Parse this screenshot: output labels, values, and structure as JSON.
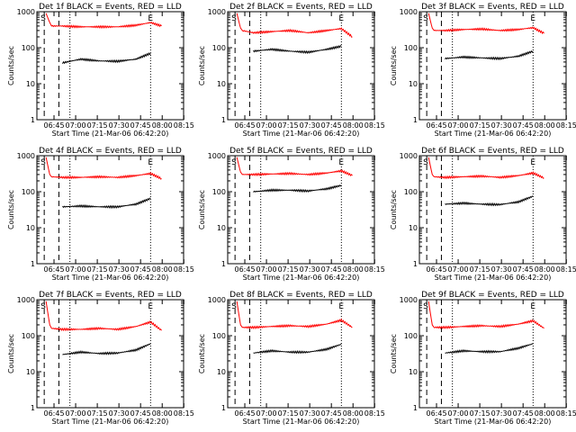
{
  "chart_data": [
    {
      "type": "line",
      "title": "Det 1f BLACK = Events, RED = LLD",
      "xlabel": "Start Time (21-Mar-06 06:42:20)",
      "ylabel": "Counts/sec",
      "xlim_minutes": [
        -2,
        38
      ],
      "ylim": [
        1,
        1000
      ],
      "log_y": true,
      "x_tick_labels": [
        "06:45",
        "07:00",
        "07:15",
        "07:30",
        "07:45",
        "08:00",
        "08:15"
      ],
      "y_tick_labels": [
        "1",
        "10",
        "100",
        "1000"
      ],
      "markers": {
        "S": 0,
        "E": 29
      },
      "vlines_dashed": [
        0,
        4
      ],
      "vlines_dotted": [
        7,
        29
      ],
      "series": [
        {
          "color": "#000000",
          "t": [
            5,
            10,
            15,
            20,
            25,
            29
          ],
          "y": [
            38,
            48,
            43,
            42,
            48,
            70
          ]
        },
        {
          "color": "#ff0000",
          "t": [
            0.5,
            1.5,
            2,
            5,
            10,
            15,
            20,
            25,
            29,
            32
          ],
          "y": [
            900,
            500,
            400,
            400,
            380,
            380,
            380,
            420,
            500,
            400
          ]
        }
      ]
    },
    {
      "type": "line",
      "title": "Det 2f BLACK = Events, RED = LLD",
      "xlabel": "Start Time (21-Mar-06 06:42:20)",
      "ylabel": "Counts/sec",
      "xlim_minutes": [
        -2,
        38
      ],
      "ylim": [
        1,
        1000
      ],
      "log_y": true,
      "x_tick_labels": [
        "06:45",
        "07:00",
        "07:15",
        "07:30",
        "07:45",
        "08:00",
        "08:15"
      ],
      "y_tick_labels": [
        "1",
        "10",
        "100",
        "1000"
      ],
      "markers": {
        "S": 0,
        "E": 29
      },
      "vlines_dashed": [
        0,
        4
      ],
      "vlines_dotted": [
        7,
        29
      ],
      "series": [
        {
          "color": "#000000",
          "t": [
            5,
            10,
            15,
            20,
            25,
            29
          ],
          "y": [
            80,
            90,
            80,
            75,
            90,
            110
          ]
        },
        {
          "color": "#ff0000",
          "t": [
            0.5,
            1.5,
            2,
            5,
            10,
            15,
            20,
            25,
            29,
            32
          ],
          "y": [
            900,
            350,
            300,
            260,
            280,
            300,
            260,
            300,
            340,
            200
          ]
        }
      ]
    },
    {
      "type": "line",
      "title": "Det 3f BLACK = Events, RED = LLD",
      "xlabel": "Start Time (21-Mar-06 06:42:20)",
      "ylabel": "Counts/sec",
      "xlim_minutes": [
        -2,
        38
      ],
      "ylim": [
        1,
        1000
      ],
      "log_y": true,
      "x_tick_labels": [
        "06:45",
        "07:00",
        "07:15",
        "07:30",
        "07:45",
        "08:00",
        "08:15"
      ],
      "y_tick_labels": [
        "1",
        "10",
        "100",
        "1000"
      ],
      "markers": {
        "S": 0,
        "E": 29
      },
      "vlines_dashed": [
        0,
        4
      ],
      "vlines_dotted": [
        7,
        29
      ],
      "series": [
        {
          "color": "#000000",
          "t": [
            5,
            10,
            15,
            20,
            25,
            29
          ],
          "y": [
            50,
            55,
            52,
            50,
            58,
            80
          ]
        },
        {
          "color": "#ff0000",
          "t": [
            0.5,
            1.5,
            2,
            5,
            10,
            15,
            20,
            25,
            29,
            32
          ],
          "y": [
            900,
            350,
            300,
            300,
            320,
            330,
            300,
            320,
            360,
            250
          ]
        }
      ]
    },
    {
      "type": "line",
      "title": "Det 4f BLACK = Events, RED = LLD",
      "xlabel": "Start Time (21-Mar-06 06:42:20)",
      "ylabel": "Counts/sec",
      "xlim_minutes": [
        -2,
        38
      ],
      "ylim": [
        1,
        1000
      ],
      "log_y": true,
      "x_tick_labels": [
        "06:45",
        "07:00",
        "07:15",
        "07:30",
        "07:45",
        "08:00",
        "08:15"
      ],
      "y_tick_labels": [
        "1",
        "10",
        "100",
        "1000"
      ],
      "markers": {
        "S": 0,
        "E": 29
      },
      "vlines_dashed": [
        0,
        4
      ],
      "vlines_dotted": [
        7,
        29
      ],
      "series": [
        {
          "color": "#000000",
          "t": [
            5,
            10,
            15,
            20,
            25,
            29
          ],
          "y": [
            38,
            40,
            38,
            38,
            45,
            65
          ]
        },
        {
          "color": "#ff0000",
          "t": [
            0.5,
            1.5,
            2,
            5,
            10,
            15,
            20,
            25,
            29,
            32
          ],
          "y": [
            900,
            300,
            260,
            250,
            250,
            260,
            250,
            280,
            320,
            230
          ]
        }
      ]
    },
    {
      "type": "line",
      "title": "Det 5f BLACK = Events, RED = LLD",
      "xlabel": "Start Time (21-Mar-06 06:42:20)",
      "ylabel": "Counts/sec",
      "xlim_minutes": [
        -2,
        38
      ],
      "ylim": [
        1,
        1000
      ],
      "log_y": true,
      "x_tick_labels": [
        "06:45",
        "07:00",
        "07:15",
        "07:30",
        "07:45",
        "08:00",
        "08:15"
      ],
      "y_tick_labels": [
        "1",
        "10",
        "100",
        "1000"
      ],
      "markers": {
        "S": 0,
        "E": 29
      },
      "vlines_dashed": [
        0,
        4
      ],
      "vlines_dotted": [
        7,
        29
      ],
      "series": [
        {
          "color": "#000000",
          "t": [
            5,
            10,
            15,
            20,
            25,
            29
          ],
          "y": [
            100,
            110,
            110,
            105,
            120,
            150
          ]
        },
        {
          "color": "#ff0000",
          "t": [
            0.5,
            1.5,
            2,
            5,
            10,
            15,
            20,
            25,
            29,
            32
          ],
          "y": [
            900,
            350,
            300,
            300,
            310,
            320,
            300,
            330,
            380,
            280
          ]
        }
      ]
    },
    {
      "type": "line",
      "title": "Det 6f BLACK = Events, RED = LLD",
      "xlabel": "Start Time (21-Mar-06 06:42:20)",
      "ylabel": "Counts/sec",
      "xlim_minutes": [
        -2,
        38
      ],
      "ylim": [
        1,
        1000
      ],
      "log_y": true,
      "x_tick_labels": [
        "06:45",
        "07:00",
        "07:15",
        "07:30",
        "07:45",
        "08:00",
        "08:15"
      ],
      "y_tick_labels": [
        "1",
        "10",
        "100",
        "1000"
      ],
      "markers": {
        "S": 0,
        "E": 29
      },
      "vlines_dashed": [
        0,
        4
      ],
      "vlines_dotted": [
        7,
        29
      ],
      "series": [
        {
          "color": "#000000",
          "t": [
            5,
            10,
            15,
            20,
            25,
            29
          ],
          "y": [
            45,
            48,
            45,
            44,
            52,
            75
          ]
        },
        {
          "color": "#ff0000",
          "t": [
            0.5,
            1.5,
            2,
            5,
            10,
            15,
            20,
            25,
            29,
            32
          ],
          "y": [
            900,
            300,
            260,
            250,
            260,
            270,
            250,
            280,
            330,
            240
          ]
        }
      ]
    },
    {
      "type": "line",
      "title": "Det 7f BLACK = Events, RED = LLD",
      "xlabel": "Start Time (21-Mar-06 06:42:20)",
      "ylabel": "Counts/sec",
      "xlim_minutes": [
        -2,
        38
      ],
      "ylim": [
        1,
        1000
      ],
      "log_y": true,
      "x_tick_labels": [
        "06:45",
        "07:00",
        "07:15",
        "07:30",
        "07:45",
        "08:00",
        "08:15"
      ],
      "y_tick_labels": [
        "1",
        "10",
        "100",
        "1000"
      ],
      "markers": {
        "S": 0,
        "E": 29
      },
      "vlines_dashed": [
        0,
        4
      ],
      "vlines_dotted": [
        7,
        29
      ],
      "series": [
        {
          "color": "#000000",
          "t": [
            5,
            10,
            15,
            20,
            25,
            29
          ],
          "y": [
            30,
            35,
            32,
            33,
            40,
            60
          ]
        },
        {
          "color": "#ff0000",
          "t": [
            0.5,
            1.5,
            2,
            5,
            10,
            15,
            20,
            25,
            29,
            32
          ],
          "y": [
            900,
            200,
            160,
            150,
            150,
            160,
            150,
            180,
            240,
            140
          ]
        }
      ]
    },
    {
      "type": "line",
      "title": "Det 8f BLACK = Events, RED = LLD",
      "xlabel": "Start Time (21-Mar-06 06:42:20)",
      "ylabel": "Counts/sec",
      "xlim_minutes": [
        -2,
        38
      ],
      "ylim": [
        1,
        1000
      ],
      "log_y": true,
      "x_tick_labels": [
        "06:45",
        "07:00",
        "07:15",
        "07:30",
        "07:45",
        "08:00",
        "08:15"
      ],
      "y_tick_labels": [
        "1",
        "10",
        "100",
        "1000"
      ],
      "markers": {
        "S": 0,
        "E": 29
      },
      "vlines_dashed": [
        0,
        4
      ],
      "vlines_dotted": [
        7,
        29
      ],
      "series": [
        {
          "color": "#000000",
          "t": [
            5,
            10,
            15,
            20,
            25,
            29
          ],
          "y": [
            33,
            38,
            35,
            35,
            42,
            58
          ]
        },
        {
          "color": "#ff0000",
          "t": [
            0.5,
            1.5,
            2,
            5,
            10,
            15,
            20,
            25,
            29,
            32
          ],
          "y": [
            900,
            200,
            170,
            170,
            180,
            190,
            180,
            210,
            270,
            170
          ]
        }
      ]
    },
    {
      "type": "line",
      "title": "Det 9f BLACK = Events, RED = LLD",
      "xlabel": "Start Time (21-Mar-06 06:42:20)",
      "ylabel": "Counts/sec",
      "xlim_minutes": [
        -2,
        38
      ],
      "ylim": [
        1,
        1000
      ],
      "log_y": true,
      "x_tick_labels": [
        "06:45",
        "07:00",
        "07:15",
        "07:30",
        "07:45",
        "08:00",
        "08:15"
      ],
      "y_tick_labels": [
        "1",
        "10",
        "100",
        "1000"
      ],
      "markers": {
        "S": 0,
        "E": 29
      },
      "vlines_dashed": [
        0,
        4
      ],
      "vlines_dotted": [
        7,
        29
      ],
      "series": [
        {
          "color": "#000000",
          "t": [
            5,
            10,
            15,
            20,
            25,
            29
          ],
          "y": [
            33,
            38,
            36,
            36,
            45,
            60
          ]
        },
        {
          "color": "#ff0000",
          "t": [
            0.5,
            1.5,
            2,
            5,
            10,
            15,
            20,
            25,
            29,
            32
          ],
          "y": [
            900,
            200,
            170,
            170,
            180,
            190,
            180,
            210,
            260,
            160
          ]
        }
      ]
    }
  ]
}
